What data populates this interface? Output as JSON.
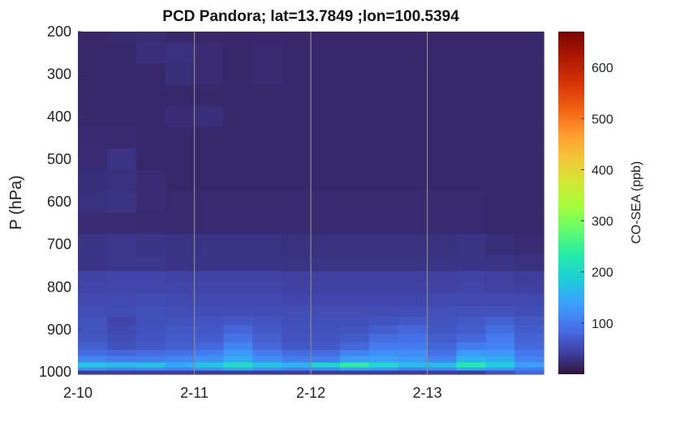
{
  "chart_data": {
    "type": "heatmap",
    "title": "PCD Pandora; lat=13.7849 ;lon=100.5394",
    "xlabel": "",
    "ylabel": "P (hPa)",
    "colorbar_label": "CO-SEA (ppb)",
    "x_ticks": [
      "2-10",
      "2-11",
      "2-12",
      "2-13"
    ],
    "y_ticks": [
      200,
      300,
      400,
      500,
      600,
      700,
      800,
      900,
      1000
    ],
    "colorbar_ticks": [
      100,
      200,
      300,
      400,
      500,
      600
    ],
    "colormap": "turbo",
    "grid": "vertical day lines",
    "xlim": [
      "2-10 00:00",
      "2-13 23:00"
    ],
    "ylim": [
      200,
      1005
    ],
    "clim": [
      0,
      670
    ],
    "x_hours": [
      0,
      6,
      12,
      18,
      24,
      30,
      36,
      42,
      48,
      54,
      60,
      66,
      72,
      78,
      84,
      90
    ],
    "levels": [
      200,
      250,
      300,
      350,
      400,
      450,
      500,
      550,
      600,
      650,
      700,
      750,
      775,
      800,
      830,
      860,
      880,
      900,
      920,
      940,
      955,
      970,
      985,
      993,
      1000
    ],
    "values": [
      [
        20,
        22,
        24,
        20,
        20,
        20,
        20,
        20,
        20,
        20,
        20,
        20,
        20,
        20,
        20,
        20
      ],
      [
        20,
        20,
        26,
        28,
        24,
        20,
        22,
        20,
        20,
        20,
        20,
        20,
        20,
        20,
        20,
        20
      ],
      [
        20,
        20,
        20,
        26,
        24,
        20,
        22,
        20,
        20,
        20,
        20,
        20,
        20,
        20,
        20,
        20
      ],
      [
        20,
        20,
        20,
        20,
        20,
        20,
        20,
        20,
        20,
        20,
        20,
        20,
        20,
        20,
        20,
        20
      ],
      [
        20,
        20,
        20,
        24,
        26,
        20,
        20,
        20,
        20,
        20,
        20,
        20,
        20,
        20,
        20,
        20
      ],
      [
        22,
        22,
        20,
        20,
        20,
        20,
        20,
        20,
        20,
        20,
        20,
        20,
        20,
        20,
        20,
        20
      ],
      [
        24,
        30,
        20,
        20,
        20,
        20,
        20,
        20,
        20,
        20,
        20,
        20,
        20,
        20,
        20,
        20
      ],
      [
        26,
        28,
        24,
        20,
        20,
        20,
        20,
        20,
        20,
        20,
        20,
        20,
        20,
        20,
        20,
        20
      ],
      [
        28,
        30,
        24,
        22,
        22,
        22,
        22,
        22,
        22,
        22,
        22,
        22,
        22,
        22,
        20,
        20
      ],
      [
        24,
        24,
        22,
        22,
        22,
        22,
        22,
        22,
        22,
        22,
        22,
        22,
        22,
        22,
        20,
        20
      ],
      [
        32,
        34,
        32,
        30,
        30,
        30,
        30,
        28,
        28,
        28,
        28,
        28,
        28,
        30,
        26,
        24
      ],
      [
        32,
        34,
        34,
        32,
        32,
        32,
        32,
        30,
        30,
        30,
        30,
        30,
        30,
        32,
        30,
        28
      ],
      [
        44,
        46,
        46,
        44,
        44,
        44,
        44,
        42,
        42,
        42,
        42,
        42,
        42,
        44,
        42,
        40
      ],
      [
        46,
        48,
        48,
        46,
        46,
        46,
        46,
        44,
        44,
        44,
        44,
        44,
        44,
        46,
        44,
        42
      ],
      [
        52,
        52,
        54,
        52,
        50,
        50,
        50,
        48,
        48,
        48,
        48,
        48,
        50,
        52,
        52,
        50
      ],
      [
        56,
        54,
        58,
        56,
        56,
        56,
        56,
        54,
        54,
        54,
        54,
        56,
        58,
        60,
        60,
        56
      ],
      [
        60,
        46,
        58,
        60,
        62,
        64,
        62,
        58,
        58,
        58,
        62,
        66,
        62,
        66,
        74,
        64
      ],
      [
        62,
        52,
        60,
        64,
        66,
        80,
        66,
        60,
        60,
        62,
        72,
        80,
        64,
        70,
        86,
        70
      ],
      [
        64,
        56,
        62,
        68,
        70,
        92,
        72,
        62,
        62,
        68,
        84,
        90,
        70,
        80,
        98,
        76
      ],
      [
        72,
        60,
        66,
        72,
        80,
        110,
        80,
        66,
        66,
        80,
        100,
        100,
        78,
        100,
        110,
        82
      ],
      [
        86,
        80,
        84,
        90,
        100,
        130,
        100,
        84,
        84,
        108,
        120,
        118,
        90,
        130,
        128,
        96
      ],
      [
        110,
        100,
        104,
        110,
        124,
        150,
        120,
        102,
        104,
        134,
        140,
        130,
        110,
        160,
        150,
        110
      ],
      [
        180,
        170,
        176,
        150,
        180,
        210,
        180,
        160,
        200,
        240,
        200,
        170,
        170,
        230,
        190,
        140
      ],
      [
        120,
        110,
        116,
        110,
        124,
        150,
        124,
        112,
        120,
        140,
        130,
        110,
        116,
        150,
        130,
        100
      ],
      [
        40,
        40,
        40,
        40,
        40,
        40,
        40,
        40,
        40,
        40,
        40,
        40,
        40,
        40,
        60,
        80
      ]
    ]
  }
}
